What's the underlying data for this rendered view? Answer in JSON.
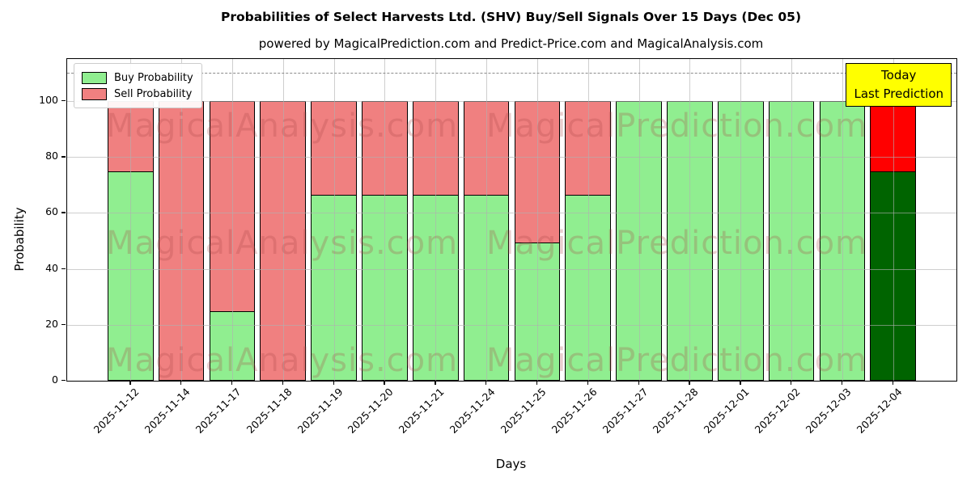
{
  "title": "Probabilities of Select Harvests Ltd. (SHV) Buy/Sell Signals Over 15 Days (Dec 05)",
  "subtitle": "powered by MagicalPrediction.com and Predict-Price.com and MagicalAnalysis.com",
  "legend": {
    "items": [
      {
        "label": "Buy Probability",
        "color": "#90ee90"
      },
      {
        "label": "Sell Probability",
        "color": "#f08080"
      }
    ]
  },
  "annotation": {
    "line1": "Today",
    "line2": "Last Prediction",
    "bg_color": "#ffff00"
  },
  "watermarks": {
    "left_text": "MagicalAnalysis.com",
    "right_text": "MagicalPrediction.com"
  },
  "chart_data": {
    "type": "bar",
    "stacked": true,
    "title": "Probabilities of Select Harvests Ltd. (SHV) Buy/Sell Signals Over 15 Days (Dec 05)",
    "xlabel": "Days",
    "ylabel": "Probability",
    "ylim": [
      0,
      115
    ],
    "yticks": [
      0,
      20,
      40,
      60,
      80,
      100
    ],
    "dashed_line_y": 110,
    "grid": true,
    "legend_position": "upper left",
    "categories": [
      "2025-11-12",
      "2025-11-14",
      "2025-11-17",
      "2025-11-18",
      "2025-11-19",
      "2025-11-20",
      "2025-11-21",
      "2025-11-24",
      "2025-11-25",
      "2025-11-26",
      "2025-11-27",
      "2025-11-28",
      "2025-12-01",
      "2025-12-02",
      "2025-12-03",
      "2025-12-04"
    ],
    "series": [
      {
        "name": "Buy Probability",
        "color": "#90ee90",
        "last_bar_color": "#006400",
        "values": [
          75,
          0,
          25,
          0,
          66.67,
          66.67,
          66.67,
          66.67,
          49.5,
          66.67,
          100,
          100,
          100,
          100,
          100,
          75
        ]
      },
      {
        "name": "Sell Probability",
        "color": "#f08080",
        "last_bar_color": "#ff0000",
        "values": [
          25,
          100,
          75,
          100,
          33.33,
          33.33,
          33.33,
          33.33,
          50.5,
          33.33,
          0,
          0,
          0,
          0,
          0,
          25
        ]
      }
    ]
  }
}
